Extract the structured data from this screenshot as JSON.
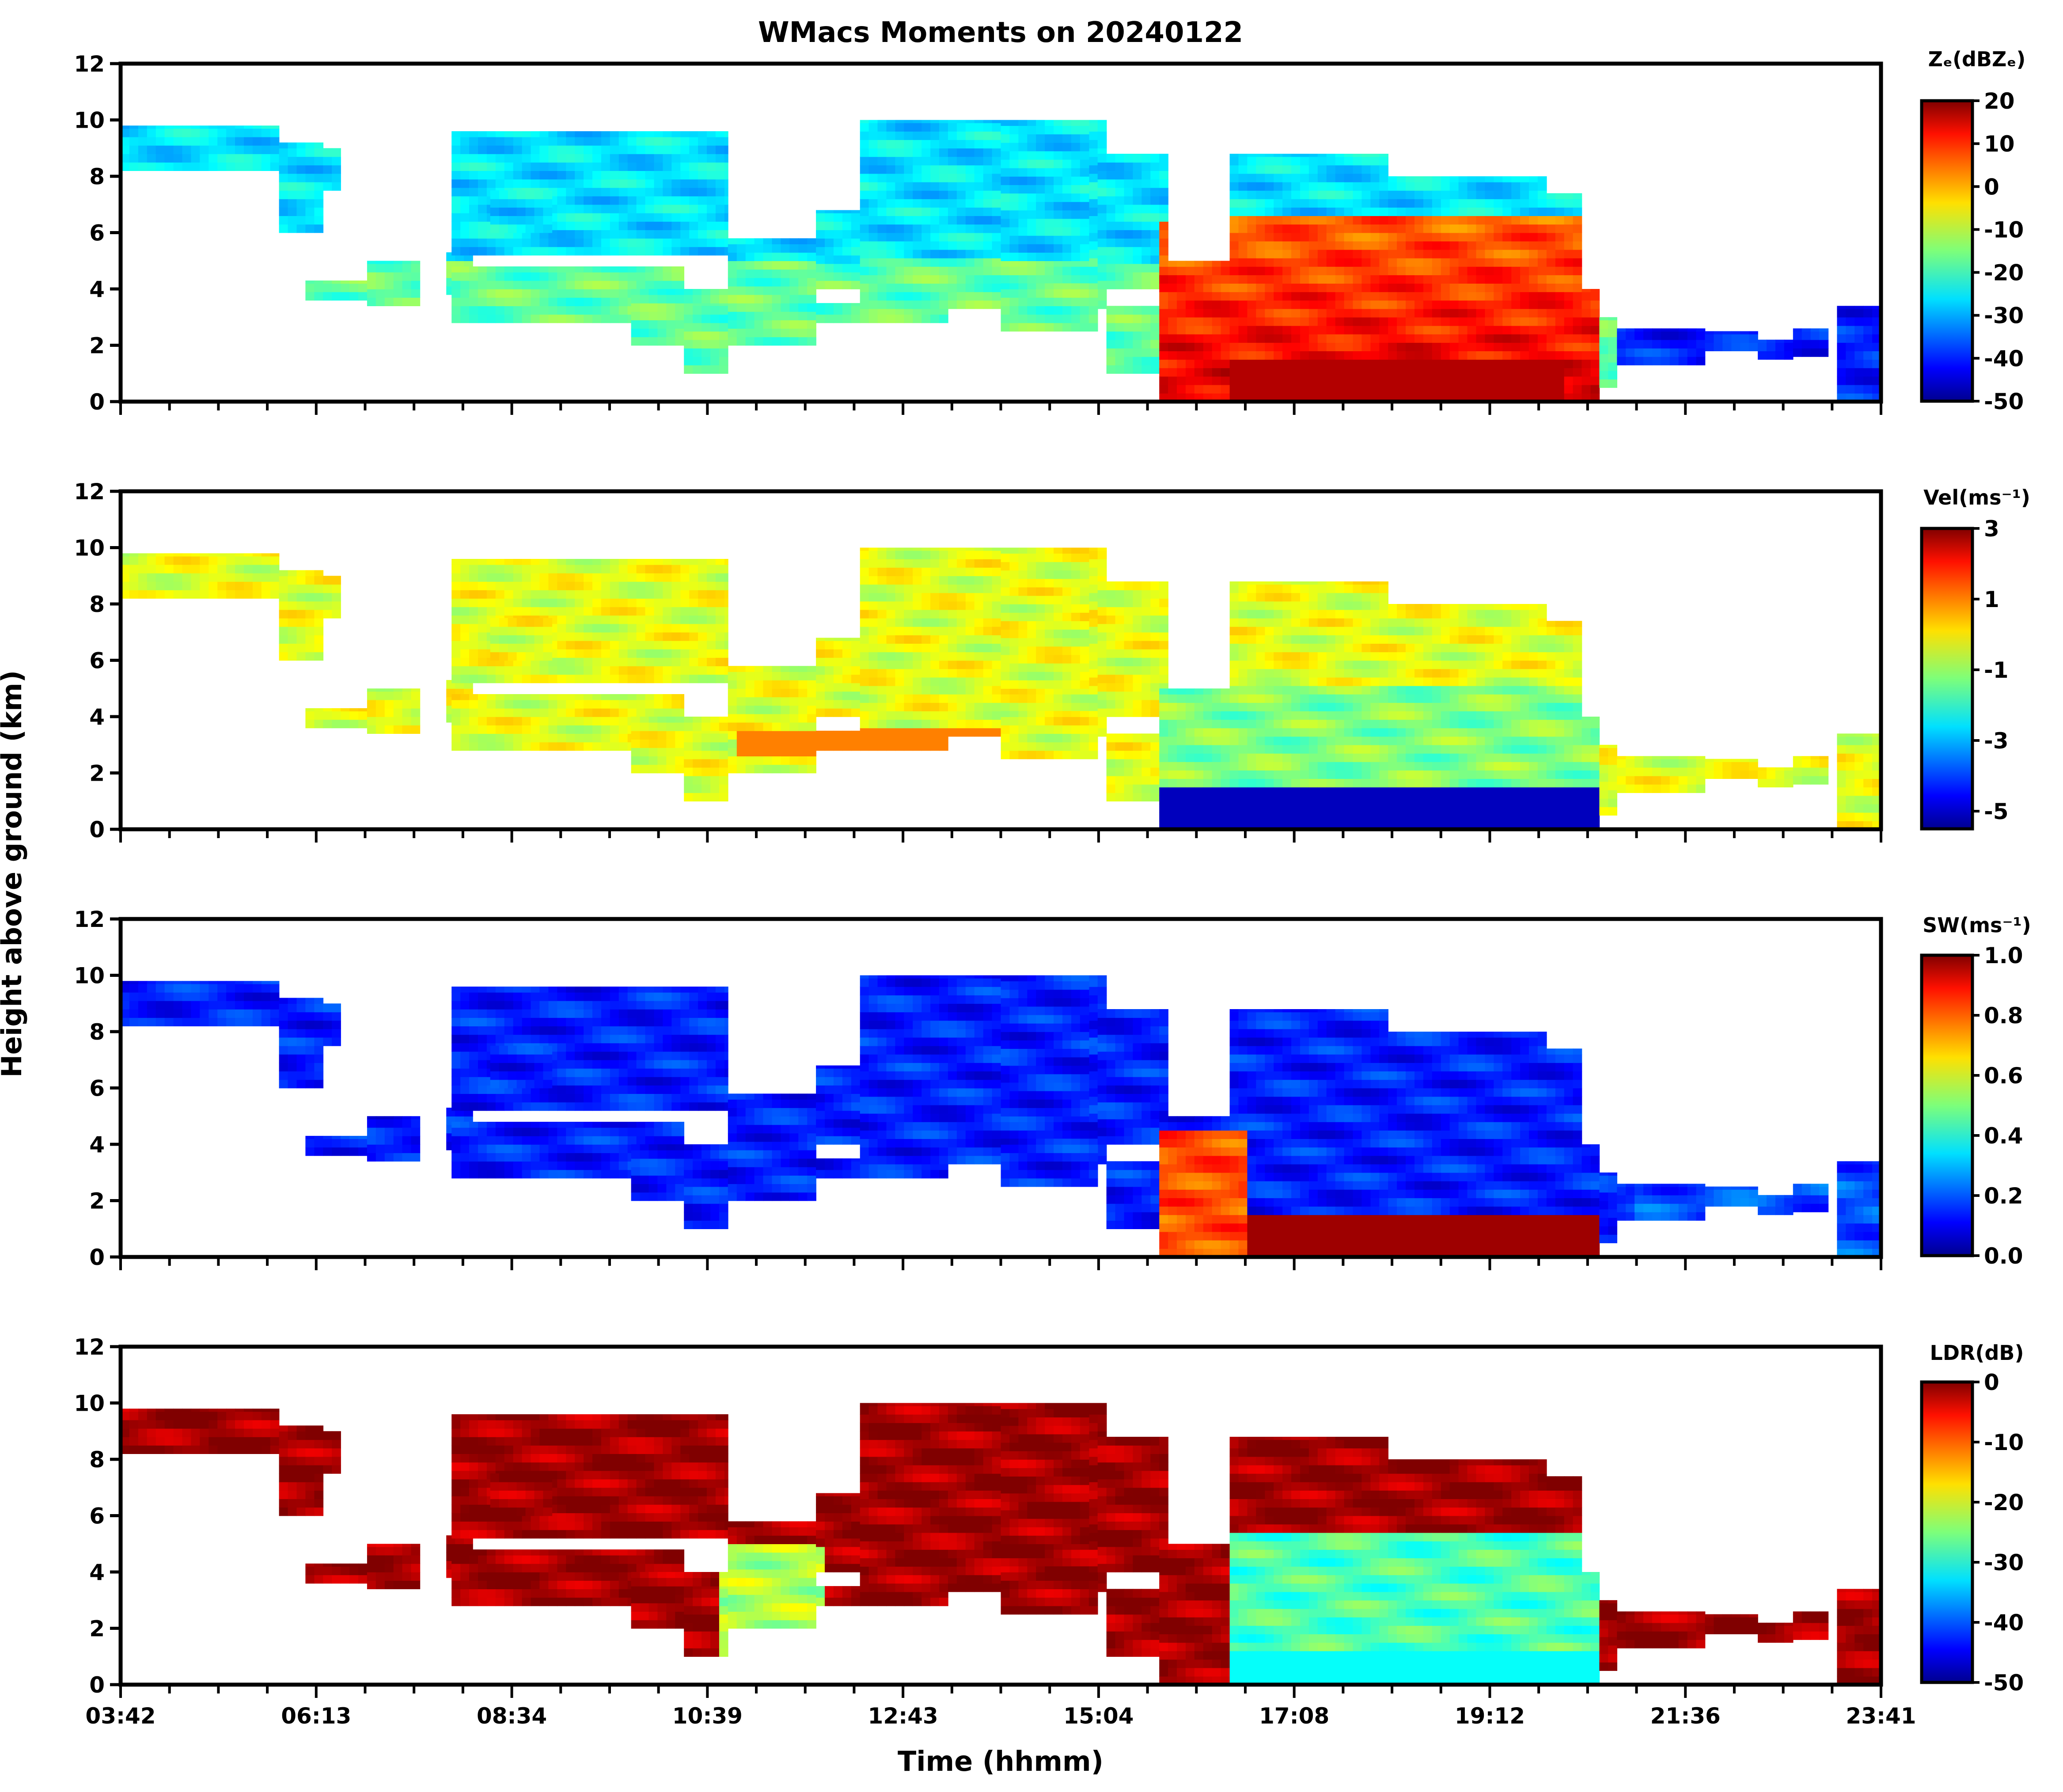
{
  "title": "WMacs Moments on 20240122",
  "chart_data": {
    "type": "heatmap",
    "title": "WMacs Moments on 20240122",
    "xlabel": "Time (hhmm)",
    "ylabel": "Height above ground (km)",
    "x_tick_labels": [
      "03:42",
      "06:13",
      "08:34",
      "10:39",
      "12:43",
      "15:04",
      "17:08",
      "19:12",
      "21:36",
      "23:41"
    ],
    "y_ticks": [
      0,
      2,
      4,
      6,
      8,
      10,
      12
    ],
    "ylim": [
      0,
      12
    ],
    "panels": [
      {
        "name": "reflectivity",
        "colorbar_label": "Zₑ(dBZₑ)",
        "clim": [
          -50,
          20
        ],
        "colorbar_ticks": [
          "20",
          "10",
          "0",
          "-10",
          "-20",
          "-30",
          "-40",
          "-50"
        ],
        "colormap": "jet"
      },
      {
        "name": "velocity",
        "colorbar_label": "Vel(ms⁻¹)",
        "clim": [
          -5.5,
          3
        ],
        "colorbar_ticks": [
          "3",
          "1",
          "-1",
          "-3",
          "-5"
        ],
        "colormap": "jet"
      },
      {
        "name": "spectrum-width",
        "colorbar_label": "SW(ms⁻¹)",
        "clim": [
          0,
          1
        ],
        "colorbar_ticks": [
          "1.0",
          "0.8",
          "0.6",
          "0.4",
          "0.2",
          "0.0"
        ],
        "colormap": "jet"
      },
      {
        "name": "ldr",
        "colorbar_label": "LDR(dB)",
        "clim": [
          -50,
          0
        ],
        "colorbar_ticks": [
          "0",
          "-10",
          "-20",
          "-30",
          "-40",
          "-50"
        ],
        "colormap": "jet"
      }
    ]
  },
  "colors": {
    "jet_dark_blue": "#00008f",
    "jet_blue": "#0050ff",
    "jet_cyan": "#00e0ff",
    "jet_green": "#7dff7a",
    "jet_yellow": "#ffd700",
    "jet_orange": "#ff6a00",
    "jet_red": "#d40000",
    "jet_dark_red": "#800000"
  }
}
